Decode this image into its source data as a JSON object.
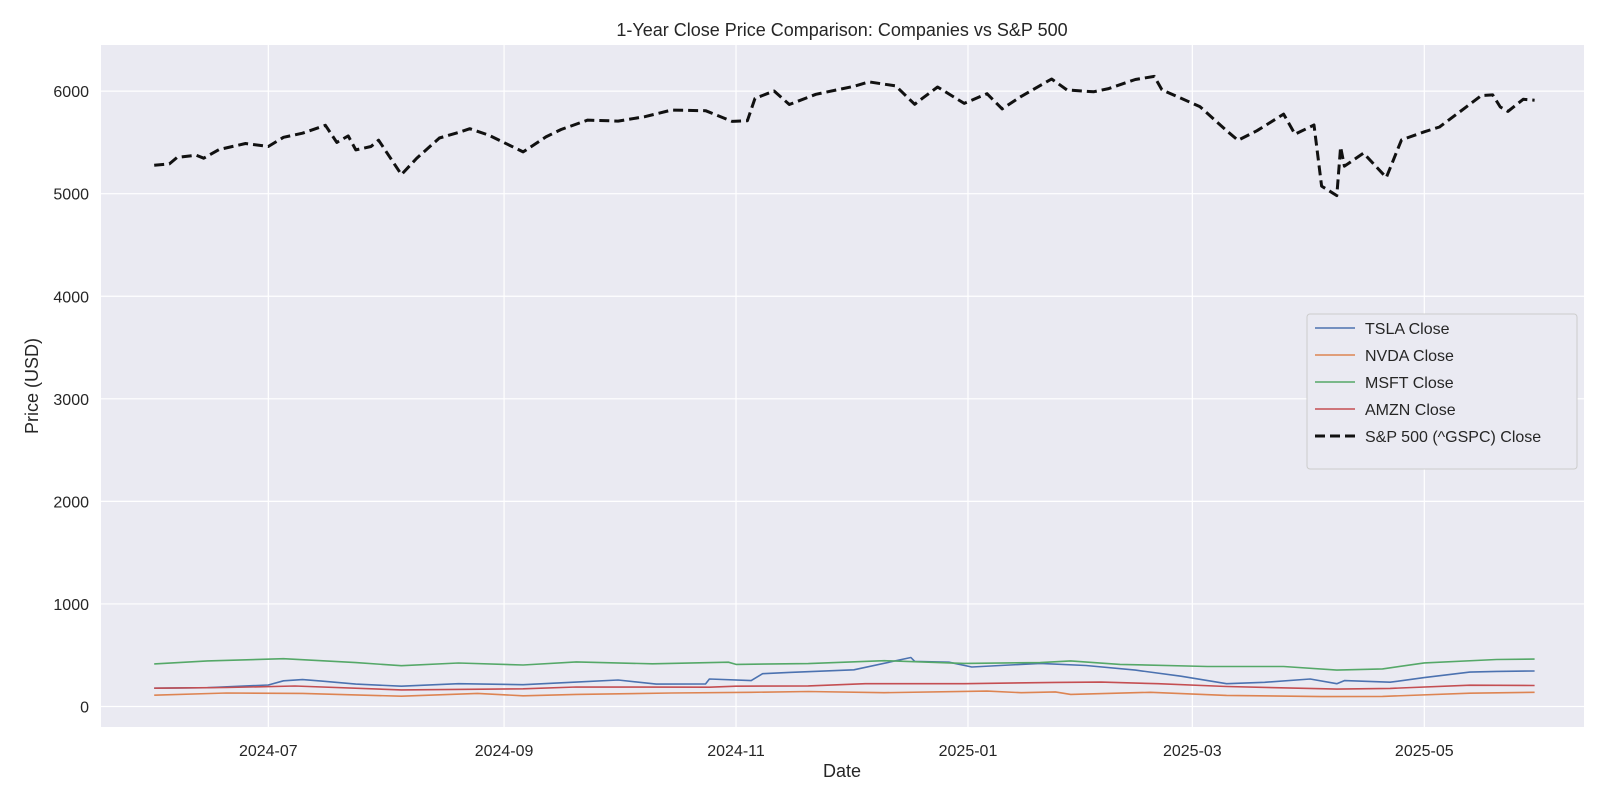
{
  "chart_data": {
    "type": "line",
    "title": "1-Year Close Price Comparison: Companies vs S&P 500",
    "xlabel": "Date",
    "ylabel": "Price (USD)",
    "x_range": [
      "2024-05-18",
      "2025-06-12"
    ],
    "ylim": [
      -200,
      6450
    ],
    "grid": true,
    "legend_position": "center-right",
    "x_ticks": [
      {
        "date": "2024-07-01",
        "label": "2024-07"
      },
      {
        "date": "2024-09-01",
        "label": "2024-09"
      },
      {
        "date": "2024-11-01",
        "label": "2024-11"
      },
      {
        "date": "2025-01-01",
        "label": "2025-01"
      },
      {
        "date": "2025-03-01",
        "label": "2025-03"
      },
      {
        "date": "2025-05-01",
        "label": "2025-05"
      }
    ],
    "y_ticks": [
      0,
      1000,
      2000,
      3000,
      4000,
      5000,
      6000
    ],
    "series": [
      {
        "name": "TSLA Close",
        "color": "#4c72b0",
        "dash": "solid",
        "points": [
          [
            "2024-06-01",
            178
          ],
          [
            "2024-06-15",
            183
          ],
          [
            "2024-07-01",
            210
          ],
          [
            "2024-07-05",
            250
          ],
          [
            "2024-07-10",
            262
          ],
          [
            "2024-07-15",
            248
          ],
          [
            "2024-07-24",
            218
          ],
          [
            "2024-08-05",
            198
          ],
          [
            "2024-08-20",
            222
          ],
          [
            "2024-09-06",
            212
          ],
          [
            "2024-09-20",
            238
          ],
          [
            "2024-10-01",
            258
          ],
          [
            "2024-10-11",
            218
          ],
          [
            "2024-10-24",
            220
          ],
          [
            "2024-10-25",
            268
          ],
          [
            "2024-11-05",
            252
          ],
          [
            "2024-11-08",
            320
          ],
          [
            "2024-11-15",
            332
          ],
          [
            "2024-12-02",
            358
          ],
          [
            "2024-12-17",
            478
          ],
          [
            "2024-12-18",
            440
          ],
          [
            "2024-12-27",
            432
          ],
          [
            "2025-01-02",
            385
          ],
          [
            "2025-01-20",
            420
          ],
          [
            "2025-02-01",
            400
          ],
          [
            "2025-02-14",
            355
          ],
          [
            "2025-02-26",
            295
          ],
          [
            "2025-03-10",
            222
          ],
          [
            "2025-03-20",
            236
          ],
          [
            "2025-04-01",
            268
          ],
          [
            "2025-04-08",
            222
          ],
          [
            "2025-04-10",
            252
          ],
          [
            "2025-04-22",
            237
          ],
          [
            "2025-05-01",
            282
          ],
          [
            "2025-05-13",
            335
          ],
          [
            "2025-05-20",
            342
          ],
          [
            "2025-05-30",
            346
          ]
        ]
      },
      {
        "name": "NVDA Close",
        "color": "#dd8452",
        "dash": "solid",
        "points": [
          [
            "2024-06-01",
            110
          ],
          [
            "2024-06-20",
            132
          ],
          [
            "2024-07-10",
            128
          ],
          [
            "2024-08-05",
            100
          ],
          [
            "2024-08-25",
            128
          ],
          [
            "2024-09-06",
            104
          ],
          [
            "2024-09-20",
            118
          ],
          [
            "2024-10-15",
            132
          ],
          [
            "2024-11-05",
            138
          ],
          [
            "2024-11-20",
            146
          ],
          [
            "2024-12-10",
            134
          ],
          [
            "2025-01-06",
            150
          ],
          [
            "2025-01-15",
            134
          ],
          [
            "2025-01-24",
            142
          ],
          [
            "2025-01-28",
            118
          ],
          [
            "2025-02-18",
            138
          ],
          [
            "2025-03-10",
            108
          ],
          [
            "2025-04-04",
            96
          ],
          [
            "2025-04-20",
            98
          ],
          [
            "2025-05-13",
            130
          ],
          [
            "2025-05-30",
            138
          ]
        ]
      },
      {
        "name": "MSFT Close",
        "color": "#55a868",
        "dash": "solid",
        "points": [
          [
            "2024-06-01",
            415
          ],
          [
            "2024-06-15",
            445
          ],
          [
            "2024-07-05",
            466
          ],
          [
            "2024-07-24",
            428
          ],
          [
            "2024-08-05",
            398
          ],
          [
            "2024-08-20",
            424
          ],
          [
            "2024-09-06",
            405
          ],
          [
            "2024-09-20",
            435
          ],
          [
            "2024-10-10",
            416
          ],
          [
            "2024-10-30",
            432
          ],
          [
            "2024-11-01",
            410
          ],
          [
            "2024-11-20",
            418
          ],
          [
            "2024-12-10",
            446
          ],
          [
            "2024-12-31",
            420
          ],
          [
            "2025-01-20",
            428
          ],
          [
            "2025-01-28",
            445
          ],
          [
            "2025-02-10",
            410
          ],
          [
            "2025-03-05",
            390
          ],
          [
            "2025-03-25",
            390
          ],
          [
            "2025-04-08",
            355
          ],
          [
            "2025-04-20",
            367
          ],
          [
            "2025-05-01",
            425
          ],
          [
            "2025-05-20",
            458
          ],
          [
            "2025-05-30",
            462
          ]
        ]
      },
      {
        "name": "AMZN Close",
        "color": "#c44e52",
        "dash": "solid",
        "points": [
          [
            "2024-06-01",
            178
          ],
          [
            "2024-06-20",
            185
          ],
          [
            "2024-07-08",
            200
          ],
          [
            "2024-08-05",
            162
          ],
          [
            "2024-09-06",
            172
          ],
          [
            "2024-09-20",
            190
          ],
          [
            "2024-10-25",
            188
          ],
          [
            "2024-11-01",
            198
          ],
          [
            "2024-11-20",
            201
          ],
          [
            "2024-12-05",
            222
          ],
          [
            "2024-12-31",
            222
          ],
          [
            "2025-01-24",
            235
          ],
          [
            "2025-02-05",
            238
          ],
          [
            "2025-02-20",
            222
          ],
          [
            "2025-03-10",
            195
          ],
          [
            "2025-04-08",
            170
          ],
          [
            "2025-04-22",
            176
          ],
          [
            "2025-05-13",
            208
          ],
          [
            "2025-05-30",
            205
          ]
        ]
      },
      {
        "name": "S&P 500 (^GSPC) Close",
        "color": "#111111",
        "dash": "dashed",
        "points": [
          [
            "2024-06-01",
            5277
          ],
          [
            "2024-06-05",
            5291
          ],
          [
            "2024-06-07",
            5354
          ],
          [
            "2024-06-12",
            5375
          ],
          [
            "2024-06-14",
            5346
          ],
          [
            "2024-06-18",
            5430
          ],
          [
            "2024-06-25",
            5490
          ],
          [
            "2024-07-01",
            5460
          ],
          [
            "2024-07-05",
            5550
          ],
          [
            "2024-07-10",
            5590
          ],
          [
            "2024-07-16",
            5667
          ],
          [
            "2024-07-19",
            5500
          ],
          [
            "2024-07-22",
            5564
          ],
          [
            "2024-07-24",
            5427
          ],
          [
            "2024-07-28",
            5460
          ],
          [
            "2024-07-30",
            5522
          ],
          [
            "2024-08-05",
            5186
          ],
          [
            "2024-08-09",
            5344
          ],
          [
            "2024-08-15",
            5543
          ],
          [
            "2024-08-20",
            5597
          ],
          [
            "2024-08-23",
            5634
          ],
          [
            "2024-08-28",
            5570
          ],
          [
            "2024-09-06",
            5408
          ],
          [
            "2024-09-12",
            5554
          ],
          [
            "2024-09-16",
            5626
          ],
          [
            "2024-09-23",
            5718
          ],
          [
            "2024-10-01",
            5708
          ],
          [
            "2024-10-08",
            5751
          ],
          [
            "2024-10-15",
            5815
          ],
          [
            "2024-10-24",
            5809
          ],
          [
            "2024-10-31",
            5705
          ],
          [
            "2024-11-04",
            5712
          ],
          [
            "2024-11-06",
            5929
          ],
          [
            "2024-11-11",
            6001
          ],
          [
            "2024-11-15",
            5870
          ],
          [
            "2024-11-22",
            5969
          ],
          [
            "2024-12-02",
            6047
          ],
          [
            "2024-12-06",
            6090
          ],
          [
            "2024-12-13",
            6051
          ],
          [
            "2024-12-18",
            5872
          ],
          [
            "2024-12-20",
            5930
          ],
          [
            "2024-12-24",
            6040
          ],
          [
            "2024-12-31",
            5881
          ],
          [
            "2025-01-06",
            5975
          ],
          [
            "2025-01-10",
            5827
          ],
          [
            "2025-01-15",
            5949
          ],
          [
            "2025-01-23",
            6118
          ],
          [
            "2025-01-27",
            6012
          ],
          [
            "2025-02-03",
            5994
          ],
          [
            "2025-02-07",
            6025
          ],
          [
            "2025-02-14",
            6114
          ],
          [
            "2025-02-19",
            6144
          ],
          [
            "2025-02-21",
            6013
          ],
          [
            "2025-03-03",
            5849
          ],
          [
            "2025-03-10",
            5614
          ],
          [
            "2025-03-13",
            5521
          ],
          [
            "2025-03-18",
            5614
          ],
          [
            "2025-03-25",
            5776
          ],
          [
            "2025-03-28",
            5580
          ],
          [
            "2025-04-02",
            5670
          ],
          [
            "2025-04-04",
            5074
          ],
          [
            "2025-04-08",
            4982
          ],
          [
            "2025-04-09",
            5456
          ],
          [
            "2025-04-10",
            5268
          ],
          [
            "2025-04-15",
            5396
          ],
          [
            "2025-04-21",
            5158
          ],
          [
            "2025-04-25",
            5525
          ],
          [
            "2025-05-01",
            5604
          ],
          [
            "2025-05-05",
            5650
          ],
          [
            "2025-05-12",
            5844
          ],
          [
            "2025-05-16",
            5958
          ],
          [
            "2025-05-19",
            5963
          ],
          [
            "2025-05-21",
            5845
          ],
          [
            "2025-05-23",
            5803
          ],
          [
            "2025-05-27",
            5921
          ],
          [
            "2025-05-30",
            5912
          ]
        ]
      }
    ]
  }
}
